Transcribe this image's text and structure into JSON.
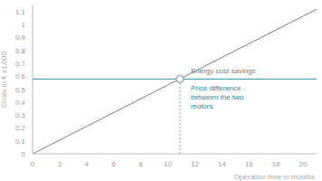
{
  "chart_data": {
    "type": "line",
    "x_label": "Operation time in months",
    "y_label": "Costs in € x1,000",
    "x": [
      0,
      21
    ],
    "series": [
      {
        "name": "Energy cost savings",
        "color": "#7a7a7a",
        "values": [
          0,
          1.12
        ]
      },
      {
        "name": "Price difference between the two motors",
        "color": "#2b8c9e",
        "values": [
          0.58,
          0.58
        ]
      }
    ],
    "break_even": {
      "x": 10.9,
      "y": 0.58
    },
    "xlim": [
      0,
      21
    ],
    "xticks": [
      0,
      2,
      4,
      6,
      8,
      10,
      12,
      14,
      16,
      18,
      20
    ],
    "ylim": [
      0,
      1.15
    ],
    "yticks": [
      0,
      0.1,
      0.2,
      0.3,
      0.4,
      0.5,
      0.6,
      0.7,
      0.8,
      0.9,
      1,
      1.1
    ],
    "grid": false
  }
}
